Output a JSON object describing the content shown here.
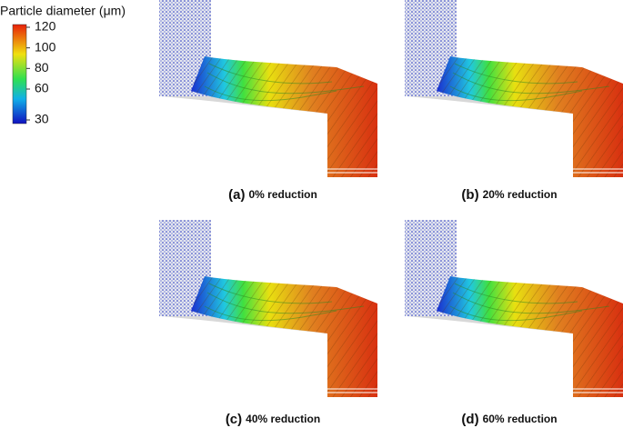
{
  "colorbar": {
    "title": "Particle diameter (μm)",
    "lim": [
      30,
      120
    ],
    "ticks": [
      30,
      60,
      80,
      100,
      120
    ]
  },
  "panels": [
    {
      "letter": "(a)",
      "caption": "0% reduction"
    },
    {
      "letter": "(b)",
      "caption": "20% reduction"
    },
    {
      "letter": "(c)",
      "caption": "40% reduction"
    },
    {
      "letter": "(d)",
      "caption": "60% reduction"
    }
  ]
}
